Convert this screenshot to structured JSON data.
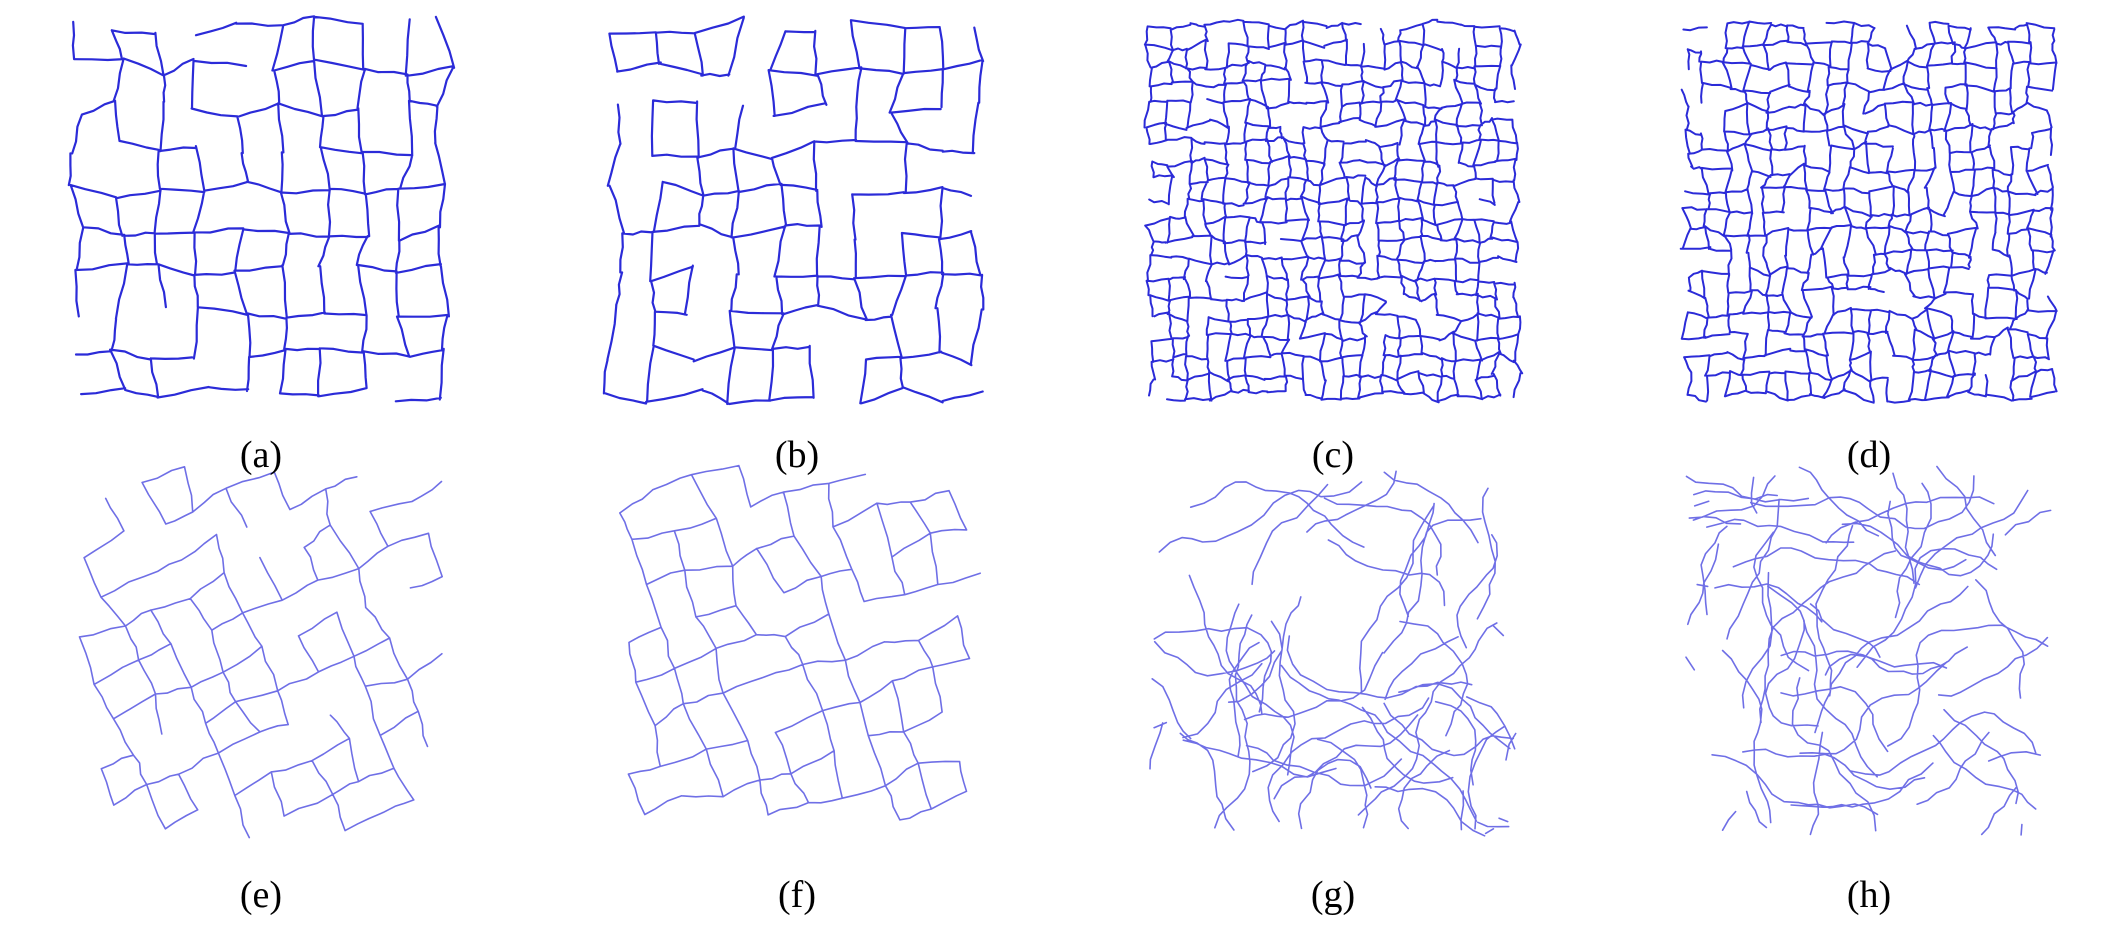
{
  "figure": {
    "line_color_dark": "#2b2bd8",
    "line_color_light": "#6f6fe6",
    "panels": [
      {
        "id": "a",
        "caption": "(a)",
        "pattern": "rectilinear-cracks-coarse",
        "density": "low",
        "orientation": "axis-aligned"
      },
      {
        "id": "b",
        "caption": "(b)",
        "pattern": "rectilinear-cracks-coarse",
        "density": "low",
        "orientation": "axis-aligned"
      },
      {
        "id": "c",
        "caption": "(c)",
        "pattern": "rectilinear-cracks-fine",
        "density": "high",
        "orientation": "axis-aligned"
      },
      {
        "id": "d",
        "caption": "(d)",
        "pattern": "rectilinear-cracks-fine",
        "density": "high",
        "orientation": "axis-aligned"
      },
      {
        "id": "e",
        "caption": "(e)",
        "pattern": "rotated-cracks",
        "density": "medium",
        "orientation": "rotated"
      },
      {
        "id": "f",
        "caption": "(f)",
        "pattern": "rotated-cracks",
        "density": "medium",
        "orientation": "rotated"
      },
      {
        "id": "g",
        "caption": "(g)",
        "pattern": "meandering-cracks",
        "density": "low",
        "orientation": "irregular"
      },
      {
        "id": "h",
        "caption": "(h)",
        "pattern": "meandering-cracks",
        "density": "low",
        "orientation": "irregular"
      }
    ]
  }
}
